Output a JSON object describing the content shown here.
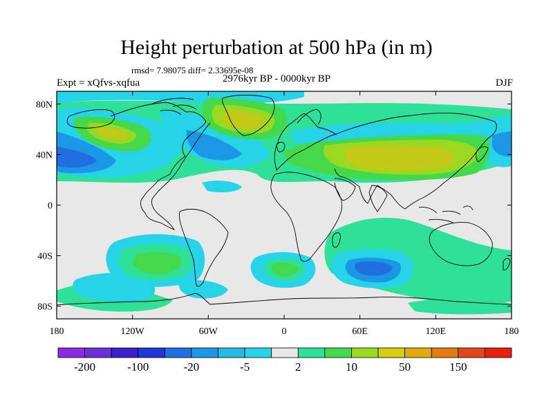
{
  "title": "Height perturbation at 500 hPa (in m)",
  "stats": "rmsd= 7.98075 diff= 2.33695e-08",
  "experiment": "Expt = xQfvs-xqfua",
  "period": "2976kyr BP - 0000kyr BP",
  "season": "DJF",
  "axes": {
    "lat_ticks": [
      {
        "label": "80N",
        "value": 80
      },
      {
        "label": "40N",
        "value": 40
      },
      {
        "label": "0",
        "value": 0
      },
      {
        "label": "40S",
        "value": -40
      },
      {
        "label": "80S",
        "value": -80
      }
    ],
    "lon_ticks": [
      {
        "label": "180",
        "value": -180
      },
      {
        "label": "120W",
        "value": -120
      },
      {
        "label": "60W",
        "value": -60
      },
      {
        "label": "0",
        "value": 0
      },
      {
        "label": "60E",
        "value": 60
      },
      {
        "label": "120E",
        "value": 120
      },
      {
        "label": "180",
        "value": 180
      }
    ]
  },
  "colorbar": {
    "colors": [
      "#8a2be2",
      "#6a2fd8",
      "#3c1fcf",
      "#1f37d6",
      "#1f6fe0",
      "#1b97e6",
      "#25b9e6",
      "#27d3e6",
      "#e8e8e8",
      "#2ee098",
      "#44d84a",
      "#9bd820",
      "#d6cc10",
      "#e2a810",
      "#e27c10",
      "#e0461a",
      "#e6200e"
    ],
    "labels": [
      {
        "text": "-200",
        "index": 1
      },
      {
        "text": "-100",
        "index": 3
      },
      {
        "text": "-20",
        "index": 5
      },
      {
        "text": "-5",
        "index": 7
      },
      {
        "text": "2",
        "index": 9
      },
      {
        "text": "10",
        "index": 11
      },
      {
        "text": "50",
        "index": 13
      },
      {
        "text": "150",
        "index": 15
      }
    ]
  },
  "colors": {
    "neutral": "#e8e8e8",
    "light_green": "#2ee098",
    "green": "#44d84a",
    "yellow_green": "#9bd820",
    "olive": "#c4c818",
    "cyan": "#27d3e6",
    "sky": "#1b97e6",
    "blue": "#1f6fe0",
    "coast": "#000000"
  }
}
